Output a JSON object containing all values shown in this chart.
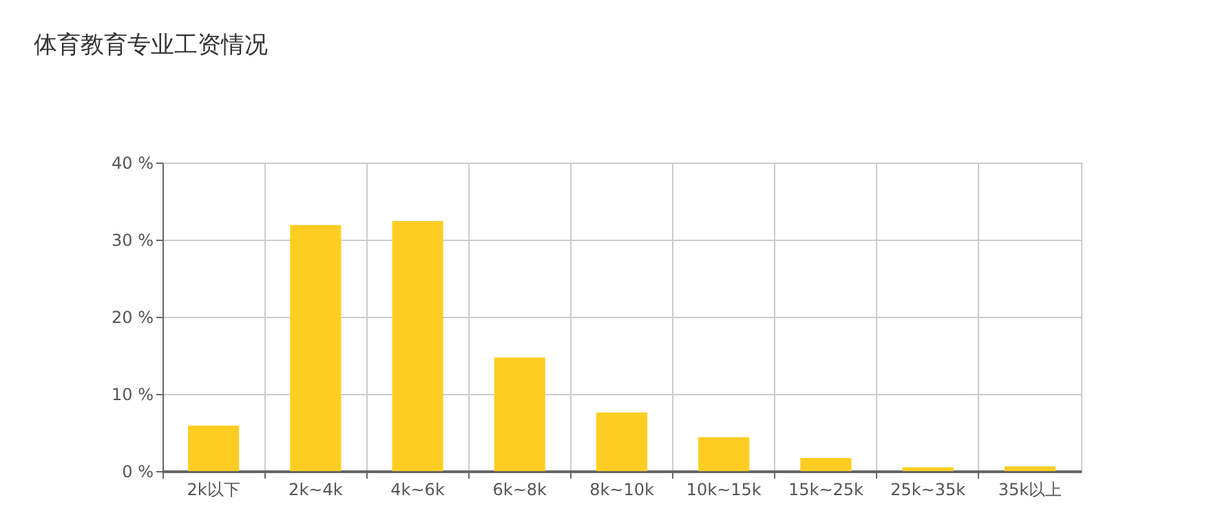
{
  "chart_data": {
    "type": "bar",
    "title": "体育教育专业工资情况",
    "categories": [
      "2k以下",
      "2k~4k",
      "4k~6k",
      "6k~8k",
      "8k~10k",
      "10k~15k",
      "15k~25k",
      "25k~35k",
      "35k以上"
    ],
    "values": [
      5.9,
      31.9,
      32.4,
      14.7,
      7.6,
      4.4,
      1.7,
      0.5,
      0.6
    ],
    "color": "#fdcd22",
    "ylim": [
      0,
      40
    ],
    "yticks": [
      {
        "value": 0,
        "label": "0 %"
      },
      {
        "value": 10,
        "label": "10 %"
      },
      {
        "value": 20,
        "label": "20 %"
      },
      {
        "value": 30,
        "label": "30 %"
      },
      {
        "value": 40,
        "label": "40 %"
      }
    ],
    "grid": true
  }
}
